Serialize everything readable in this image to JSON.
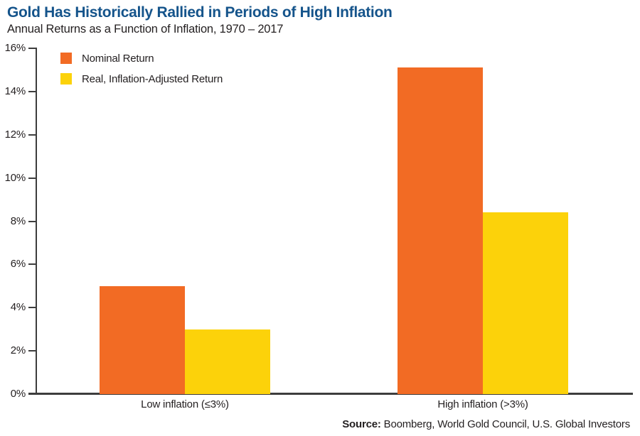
{
  "header": {
    "title": "Gold Has Historically Rallied in Periods of High Inflation",
    "subtitle": "Annual Returns as a Function of Inflation, 1970 – 2017"
  },
  "chart_data": {
    "type": "bar",
    "title": "Gold Has Historically Rallied in Periods of High Inflation",
    "subtitle": "Annual Returns as a Function of Inflation, 1970 – 2017",
    "categories": [
      "Low inflation (≤3%)",
      "High inflation (>3%)"
    ],
    "series": [
      {
        "name": "Nominal Return",
        "color": "#F26B24",
        "values": [
          5.0,
          15.1
        ]
      },
      {
        "name": "Real, Inflation-Adjusted Return",
        "color": "#FCD20A",
        "values": [
          3.0,
          8.4
        ]
      }
    ],
    "xlabel": "",
    "ylabel": "",
    "ylim": [
      0,
      16
    ],
    "ytick_step": 2,
    "yticks": [
      "0%",
      "2%",
      "4%",
      "6%",
      "8%",
      "10%",
      "12%",
      "14%",
      "16%"
    ],
    "grid": false,
    "legend_position": "top-left"
  },
  "footer": {
    "source_label": "Source:",
    "source_text": " Boomberg, World Gold Council, U.S. Global Investors"
  },
  "colors": {
    "title_blue": "#15548B",
    "axis_gray": "#3D3D3D",
    "text_dark": "#231F20",
    "nominal_orange": "#F26B24",
    "real_yellow": "#FCD20A"
  }
}
